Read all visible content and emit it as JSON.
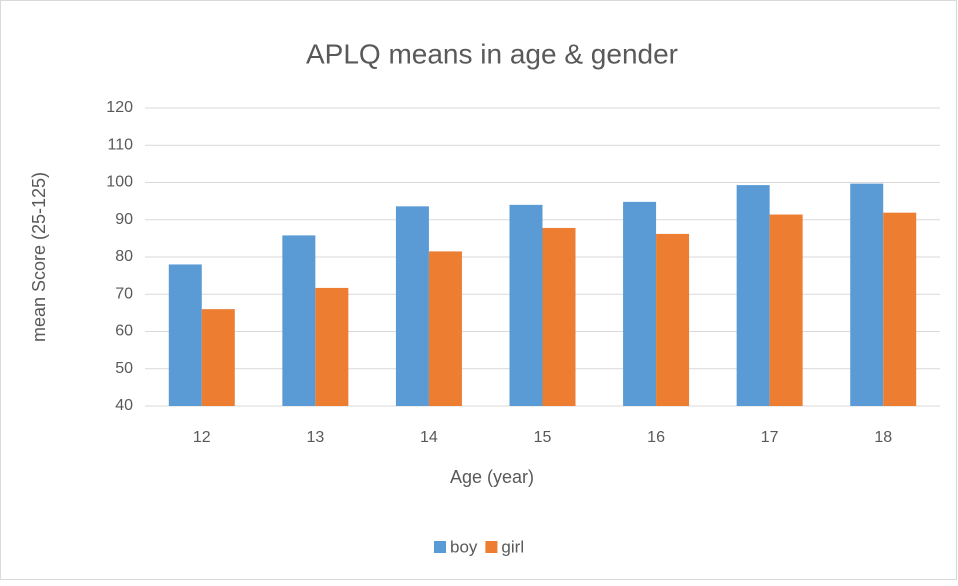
{
  "chart_data": {
    "type": "bar",
    "title": "APLQ means in age & gender",
    "x_label": "Age (year)",
    "y_label": "mean Score (25-125)",
    "categories": [
      "12",
      "13",
      "14",
      "15",
      "16",
      "17",
      "18"
    ],
    "series": [
      {
        "name": "boy",
        "color": "#5b9bd5",
        "values": [
          78,
          85.8,
          93.6,
          94,
          94.8,
          99.3,
          99.7
        ]
      },
      {
        "name": "girl",
        "color": "#ed7d31",
        "values": [
          66,
          71.7,
          81.5,
          87.8,
          86.2,
          91.4,
          91.9
        ]
      }
    ],
    "ylim": [
      40,
      120
    ],
    "yticks": [
      40,
      50,
      60,
      70,
      80,
      90,
      100,
      110,
      120
    ],
    "grid": true,
    "legend": "bottom"
  }
}
